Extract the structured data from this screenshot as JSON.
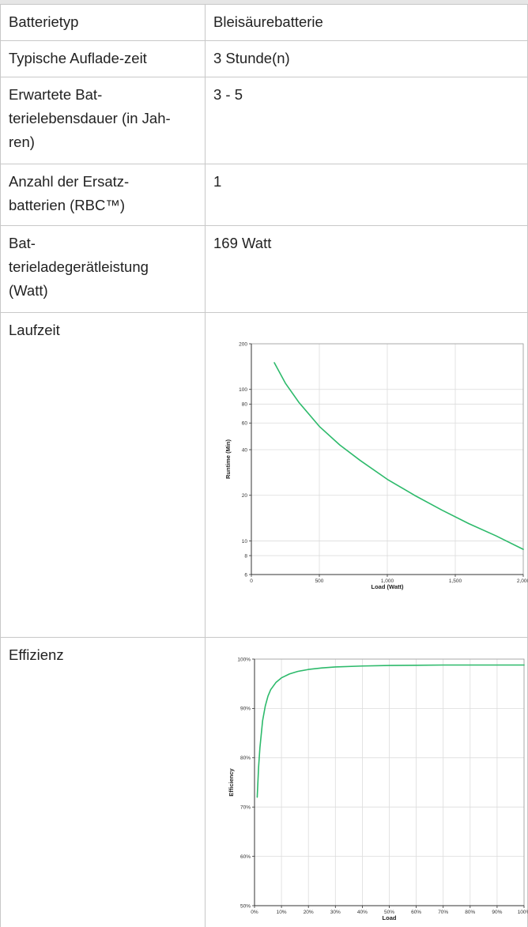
{
  "rows": [
    {
      "label": "Batterietyp",
      "value": "Bleisäurebatterie"
    },
    {
      "label": "Typische Auflade-zeit",
      "value": "3 Stunde(n)"
    },
    {
      "label_lines": [
        "Erwartete Bat-",
        "terielebensdauer (in Jah-",
        "ren)"
      ],
      "value": "3 - 5"
    },
    {
      "label_lines": [
        "Anzahl der Ersatz-",
        "batterien (RBC™)"
      ],
      "value": "1"
    },
    {
      "label_lines": [
        "Bat-",
        "terieladegerätleistung",
        "(Watt)"
      ],
      "value": "169 Watt"
    },
    {
      "label": "Laufzeit"
    },
    {
      "label": "Effizienz"
    }
  ],
  "chart_data": [
    {
      "type": "line",
      "xlabel": "Load (Watt)",
      "ylabel": "Runtime (Min)",
      "xlim": [
        0,
        2000
      ],
      "ylim": [
        6,
        200
      ],
      "yscale": "log",
      "grid": true,
      "x_ticks": [
        0,
        500,
        1000,
        1500,
        2000
      ],
      "x_tick_labels": [
        "0",
        "500",
        "1,000",
        "1,500",
        "2,000"
      ],
      "y_ticks": [
        6,
        8,
        10,
        20,
        40,
        60,
        80,
        100,
        200
      ],
      "y_tick_labels": [
        "6",
        "8",
        "10",
        "20",
        "40",
        "60",
        "80",
        "100",
        "200"
      ],
      "line_color": "#2dba6b",
      "series": [
        {
          "x": [
            169,
            250,
            350,
            500,
            650,
            800,
            1000,
            1200,
            1400,
            1600,
            1800,
            2000
          ],
          "y": [
            150,
            110,
            82,
            57,
            43,
            34,
            25.5,
            20,
            16,
            13,
            10.8,
            8.8
          ]
        }
      ]
    },
    {
      "type": "line",
      "xlabel": "Load",
      "ylabel": "Efficiency",
      "xlim": [
        0,
        100
      ],
      "ylim": [
        50,
        100
      ],
      "grid": true,
      "x_ticks": [
        0,
        10,
        20,
        30,
        40,
        50,
        60,
        70,
        80,
        90,
        100
      ],
      "x_tick_labels": [
        "0%",
        "10%",
        "20%",
        "30%",
        "40%",
        "50%",
        "60%",
        "70%",
        "80%",
        "90%",
        "100%"
      ],
      "y_ticks": [
        50,
        60,
        70,
        80,
        90,
        100
      ],
      "y_tick_labels": [
        "50%",
        "60%",
        "70%",
        "80%",
        "90%",
        "100%"
      ],
      "line_color": "#2dba6b",
      "series": [
        {
          "x": [
            1,
            1.5,
            2,
            3,
            4,
            5,
            6,
            8,
            10,
            13,
            16,
            20,
            25,
            30,
            40,
            50,
            60,
            70,
            80,
            90,
            100
          ],
          "y": [
            72,
            78,
            82,
            87.5,
            90.5,
            92.5,
            93.8,
            95.3,
            96.2,
            97,
            97.5,
            97.9,
            98.2,
            98.4,
            98.6,
            98.7,
            98.75,
            98.8,
            98.8,
            98.8,
            98.8
          ]
        }
      ]
    }
  ]
}
